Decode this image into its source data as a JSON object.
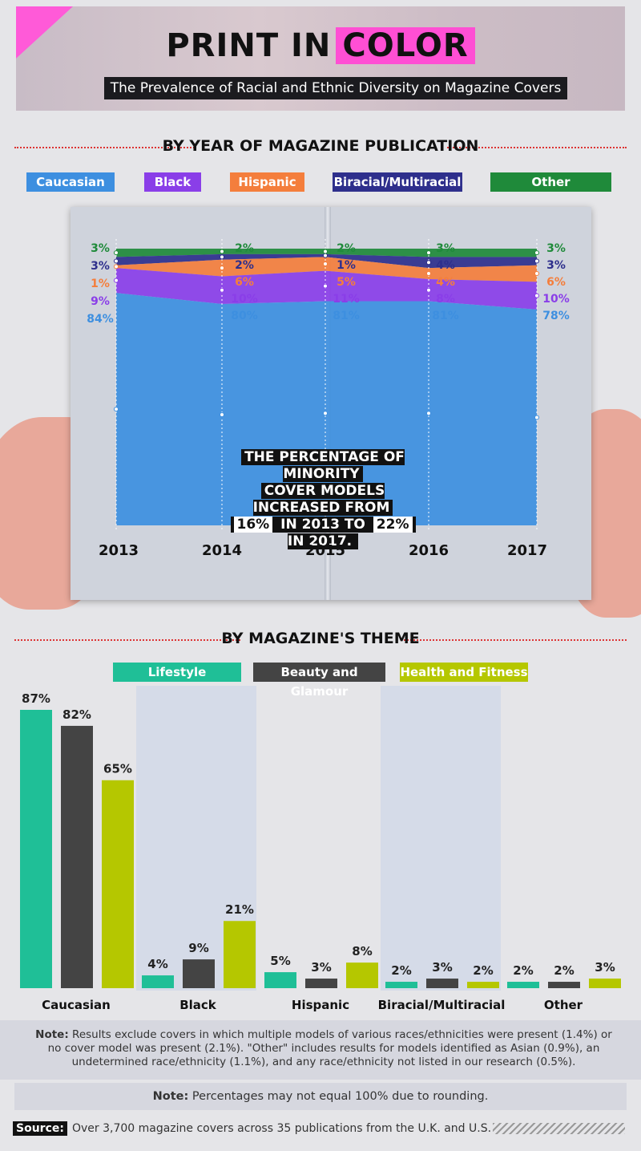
{
  "header": {
    "title_part1": "PRINT IN",
    "title_part2": "COLOR",
    "subtitle": "The Prevalence of Racial and Ethnic Diversity on Magazine Covers"
  },
  "section1": {
    "heading": "BY YEAR OF MAGAZINE PUBLICATION"
  },
  "section2": {
    "heading": "BY MAGAZINE'S THEME"
  },
  "colors": {
    "caucasian": "#3d8fe0",
    "black": "#8a3ee8",
    "hispanic": "#f47e3c",
    "biracial": "#2e2f8c",
    "other": "#1f8a3a",
    "lifestyle": "#1fbf97",
    "beauty": "#444444",
    "health": "#b5c700",
    "accent": "#ff4fd4"
  },
  "callout": {
    "line1": "THE PERCENTAGE OF MINORITY",
    "line2": "COVER MODELS INCREASED FROM",
    "line3_a": "16%",
    "line3_b": " IN 2013 TO ",
    "line3_c": "22%",
    "line3_d": " IN 2017."
  },
  "chart_data": [
    {
      "type": "area",
      "stacked": true,
      "x": [
        "2013",
        "2014",
        "2015",
        "2016",
        "2017"
      ],
      "series": [
        {
          "name": "Caucasian",
          "values": [
            84,
            80,
            81,
            81,
            78
          ],
          "labels": [
            "84%",
            "80%",
            "81%",
            "81%",
            "78%"
          ]
        },
        {
          "name": "Black",
          "values": [
            9,
            10,
            11,
            8,
            10
          ],
          "labels": [
            "9%",
            "10%",
            "11%",
            "8%",
            "10%"
          ]
        },
        {
          "name": "Hispanic",
          "values": [
            1,
            6,
            5,
            4,
            6
          ],
          "labels": [
            "1%",
            "6%",
            "5%",
            "4%",
            "6%"
          ]
        },
        {
          "name": "Biracial/Multiracial",
          "values": [
            3,
            2,
            1,
            4,
            3
          ],
          "labels": [
            "3%",
            "2%",
            "1%",
            "4%",
            "3%"
          ]
        },
        {
          "name": "Other",
          "values": [
            3,
            2,
            2,
            3,
            3
          ],
          "labels": [
            "3%",
            "2%",
            "2%",
            "3%",
            "3%"
          ]
        }
      ],
      "legend": "top",
      "ylim": [
        0,
        100
      ]
    },
    {
      "type": "bar",
      "categories": [
        "Caucasian",
        "Black",
        "Hispanic",
        "Biracial/Multiracial",
        "Other"
      ],
      "series": [
        {
          "name": "Lifestyle",
          "values": [
            87,
            4,
            5,
            2,
            2
          ],
          "labels": [
            "87%",
            "4%",
            "5%",
            "2%",
            "2%"
          ]
        },
        {
          "name": "Beauty and Glamour",
          "values": [
            82,
            9,
            3,
            3,
            2
          ],
          "labels": [
            "82%",
            "9%",
            "3%",
            "3%",
            "2%"
          ]
        },
        {
          "name": "Health and Fitness",
          "values": [
            65,
            21,
            8,
            2,
            3
          ],
          "labels": [
            "65%",
            "21%",
            "8%",
            "2%",
            "3%"
          ]
        }
      ],
      "legend": "top",
      "ylim": [
        0,
        90
      ]
    }
  ],
  "notes": {
    "note1_label": "Note:",
    "note1_text": " Results exclude covers in which multiple models of various races/ethnicities were present (1.4%) or no cover model was present (2.1%). \"Other\" includes results for models identified as Asian (0.9%), an undetermined race/ethnicity (1.1%), and any race/ethnicity not listed in our research (0.5%).",
    "note2_label": "Note:",
    "note2_text": " Percentages may not equal 100% due to rounding.",
    "source_label": "Source:",
    "source_text": "Over 3,700 magazine covers across 35 publications from the U.K. and U.S."
  }
}
